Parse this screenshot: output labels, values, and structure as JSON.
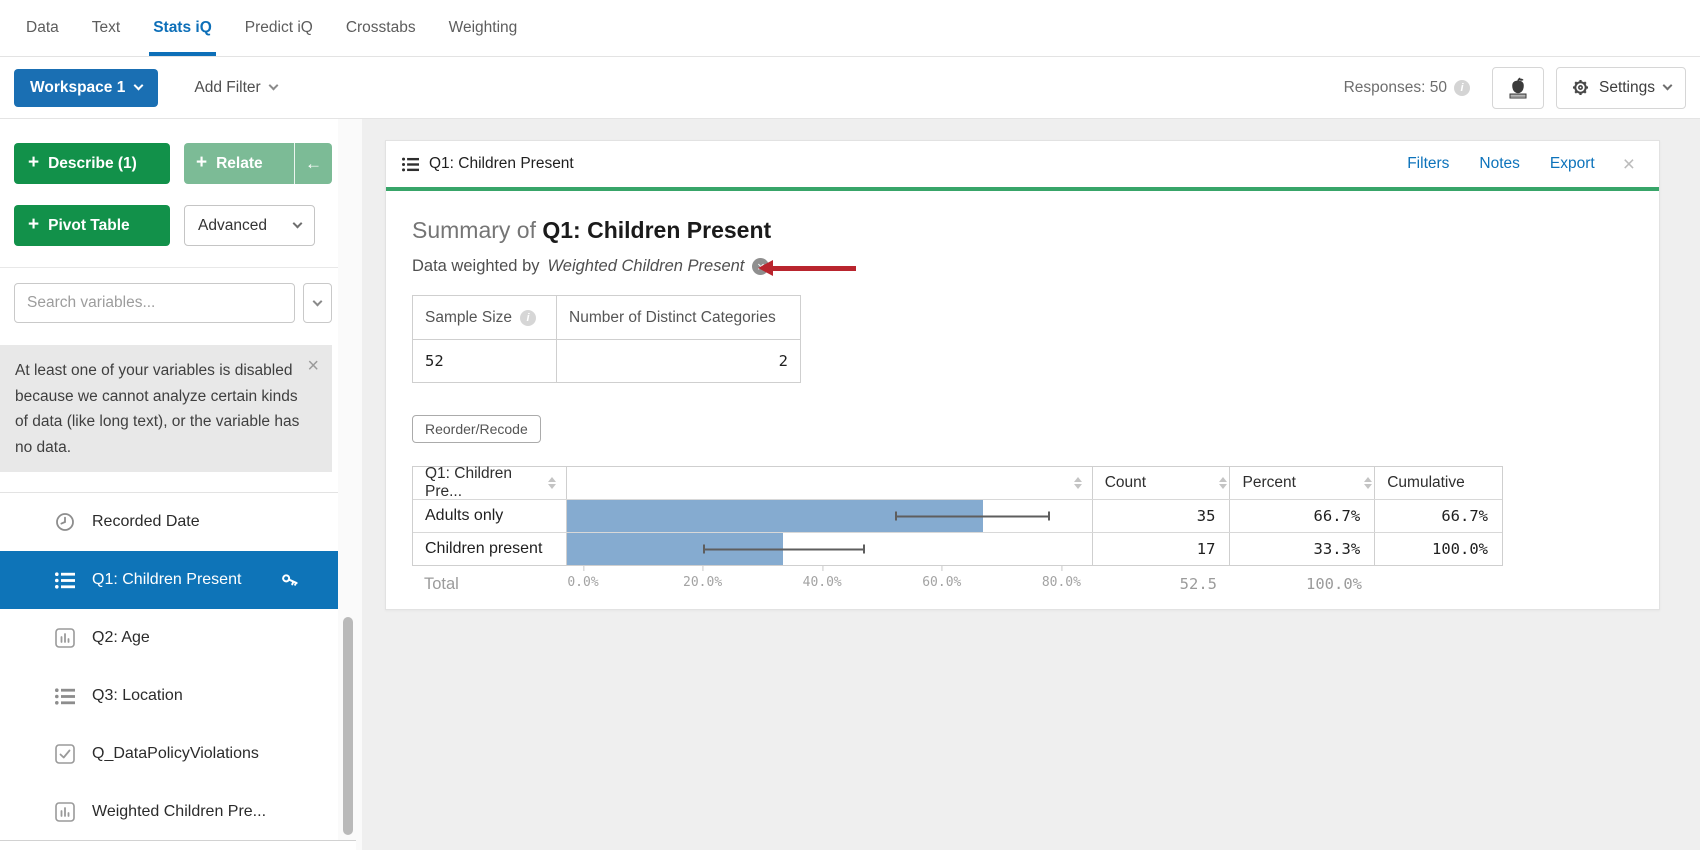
{
  "nav": {
    "tabs": [
      {
        "label": "Data"
      },
      {
        "label": "Text"
      },
      {
        "label": "Stats iQ",
        "active": true
      },
      {
        "label": "Predict iQ"
      },
      {
        "label": "Crosstabs"
      },
      {
        "label": "Weighting"
      }
    ]
  },
  "toolbar": {
    "workspace": "Workspace 1",
    "add_filter": "Add Filter",
    "responses": "Responses: 50",
    "settings": "Settings"
  },
  "sidebar": {
    "describe": "Describe (1)",
    "relate": "Relate",
    "back_arrow": "←",
    "pivot": "Pivot Table",
    "advanced": "Advanced",
    "plus": "+",
    "search_placeholder": "Search variables...",
    "warning": "At least one of your variables is disabled because we cannot analyze certain kinds of data (like long text), or the variable has no data.",
    "variables": [
      {
        "label": "Recorded Date",
        "icon": "clock-icon"
      },
      {
        "label": "Q1: Children Present",
        "icon": "list-icon",
        "selected": true,
        "weighted_key": true
      },
      {
        "label": "Q2: Age",
        "icon": "bar-chart-icon"
      },
      {
        "label": "Q3: Location",
        "icon": "list-icon"
      },
      {
        "label": "Q_DataPolicyViolations",
        "icon": "checkbox-icon"
      },
      {
        "label": "Weighted Children Pre...",
        "icon": "bar-chart-icon"
      }
    ]
  },
  "card": {
    "title": "Q1: Children Present",
    "links": {
      "filters": "Filters",
      "notes": "Notes",
      "export": "Export"
    },
    "summary_prefix": "Summary of",
    "summary_title": "Q1: Children Present",
    "weighted_prefix": "Data weighted by",
    "weighted_variable": "Weighted Children Present",
    "stats_table": {
      "sample_size_header": "Sample Size",
      "distinct_header": "Number of Distinct Categories",
      "sample_size": "52",
      "distinct_categories": "2"
    },
    "reorder_button": "Reorder/Recode",
    "table": {
      "col_label": "Q1: Children Pre...",
      "col_count": "Count",
      "col_percent": "Percent",
      "col_cumulative": "Cumulative",
      "rows": [
        {
          "label": "Adults only",
          "count": "35",
          "percent": "66.7%",
          "cumulative": "66.7%",
          "bar_percent": 66.7,
          "ci": [
            52,
            78
          ]
        },
        {
          "label": "Children present",
          "count": "17",
          "percent": "33.3%",
          "cumulative": "100.0%",
          "bar_percent": 33.3,
          "ci": [
            20,
            47
          ]
        }
      ],
      "total": {
        "label": "Total",
        "count": "52.5",
        "percent": "100.0%"
      }
    }
  },
  "chart_data": {
    "type": "bar",
    "orientation": "horizontal",
    "title": "Summary of Q1: Children Present",
    "categories": [
      "Adults only",
      "Children present"
    ],
    "series": [
      {
        "name": "Percent",
        "values": [
          66.7,
          33.3
        ]
      }
    ],
    "counts": [
      35,
      17
    ],
    "cumulative": [
      66.7,
      100.0
    ],
    "error_bars": [
      [
        52,
        78
      ],
      [
        20,
        47
      ]
    ],
    "x_ticks": [
      "0.0%",
      "20.0%",
      "40.0%",
      "60.0%",
      "80.0%"
    ],
    "xlim": [
      0,
      88
    ],
    "bar_color": "#85abd0",
    "total_count": 52.5,
    "total_percent": "100.0%"
  },
  "colors": {
    "accent_blue": "#0d6fb8",
    "selected_blue": "#0e74b8",
    "green_button": "#12914a",
    "light_green_button": "#7cbb96",
    "card_green": "#38a569",
    "bar_fill": "#85abd0",
    "annotation_red": "#b9252e"
  }
}
